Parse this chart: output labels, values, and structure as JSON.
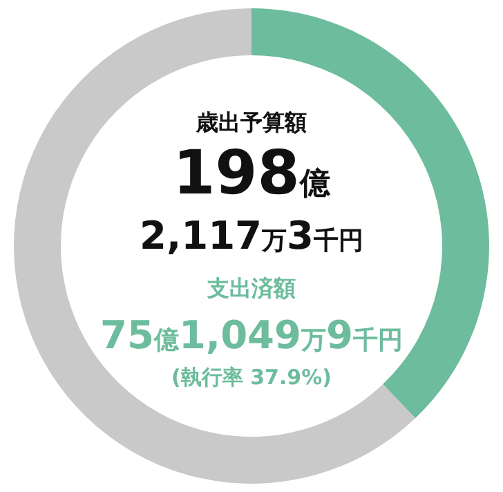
{
  "chart_data": {
    "type": "donut",
    "categories": [
      null,
      null
    ],
    "values": [
      37.9,
      62.1
    ],
    "colors": [
      "#6dbc9e",
      "#c9c9c9"
    ],
    "annotations": [
      "歳出予算額",
      "198億",
      "2,117万3千円",
      "支出済額",
      "75億1,049万9千円",
      "(執行率 37.9%)"
    ]
  }
}
